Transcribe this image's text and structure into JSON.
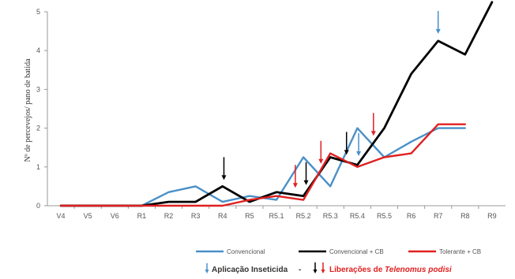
{
  "chart_data": {
    "type": "line",
    "title": "",
    "xlabel": "",
    "ylabel": "Nº de percevejos/ pano de batida",
    "ylim": [
      0,
      5
    ],
    "yticks": [
      0,
      1,
      2,
      3,
      4,
      5
    ],
    "grid": false,
    "legend_position": "bottom",
    "categories": [
      "V4",
      "V5",
      "V6",
      "R1",
      "R2",
      "R3",
      "R4",
      "R5",
      "R5.1",
      "R5.2",
      "R5.3",
      "R5.4",
      "R5.5",
      "R6",
      "R7",
      "R8",
      "R9"
    ],
    "series": [
      {
        "name": "Convencional",
        "color": "#4a90c8",
        "values": [
          0,
          0,
          0,
          0,
          0.35,
          0.5,
          0.1,
          0.25,
          0.15,
          1.25,
          0.5,
          2.0,
          1.25,
          1.65,
          2.0,
          2.0,
          null
        ]
      },
      {
        "name": "Convencional + CB",
        "color": "#000000",
        "values": [
          0,
          0,
          0,
          0,
          0.1,
          0.1,
          0.5,
          0.1,
          0.35,
          0.25,
          1.25,
          1.05,
          2.0,
          3.4,
          4.25,
          3.9,
          5.25
        ]
      },
      {
        "name": "Tolerante + CB",
        "color": "#e02020",
        "values": [
          0,
          0,
          0,
          0,
          0,
          0,
          0,
          0.15,
          0.25,
          0.15,
          1.35,
          1.0,
          1.25,
          1.35,
          2.1,
          2.1,
          null
        ]
      }
    ],
    "annotations": {
      "insecticide": {
        "label": "Aplicação Inseticida",
        "color": "#4a90c8",
        "positions": [
          11.05,
          14.0
        ]
      },
      "release": {
        "label_prefix": "Liberações de",
        "label_species": "Telenomus podisi",
        "separator": "-",
        "black_color": "#000000",
        "red_color": "#e02020",
        "black_positions": [
          6.05,
          9.1,
          10.6
        ],
        "red_positions": [
          8.7,
          9.65,
          11.6
        ]
      }
    }
  }
}
